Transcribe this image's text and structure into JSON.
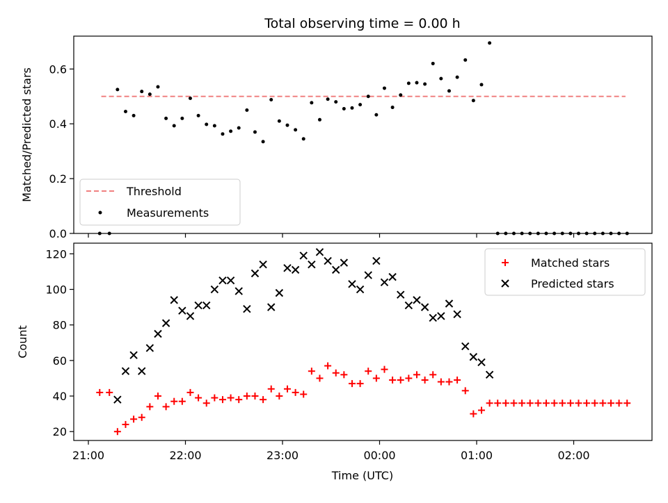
{
  "chart_data": [
    {
      "type": "scatter",
      "panel": "top",
      "title": "Total observing time = 0.00 h",
      "ylabel": "Matched/Predicted stars",
      "xlabel": "",
      "ylim": [
        0,
        0.72
      ],
      "yticks": [
        0.0,
        0.2,
        0.4,
        0.6
      ],
      "ytick_labels": [
        "0.0",
        "0.2",
        "0.4",
        "0.6"
      ],
      "legend": {
        "placement": "lower-left",
        "entries": [
          "Threshold",
          "Measurements"
        ]
      },
      "threshold": {
        "name": "Threshold",
        "value": 0.5,
        "x_start": "21:08",
        "x_end": "02:32",
        "color": "#f08080"
      },
      "measurements": {
        "name": "Measurements",
        "color": "#000000",
        "x": [
          "21:07",
          "21:13",
          "21:18",
          "21:23",
          "21:28",
          "21:33",
          "21:38",
          "21:43",
          "21:48",
          "21:53",
          "21:58",
          "22:03",
          "22:08",
          "22:13",
          "22:18",
          "22:23",
          "22:28",
          "22:33",
          "22:38",
          "22:43",
          "22:48",
          "22:53",
          "22:58",
          "23:03",
          "23:08",
          "23:13",
          "23:18",
          "23:23",
          "23:28",
          "23:33",
          "23:38",
          "23:43",
          "23:48",
          "23:53",
          "23:58",
          "00:03",
          "00:08",
          "00:13",
          "00:18",
          "00:23",
          "00:28",
          "00:33",
          "00:38",
          "00:43",
          "00:48",
          "00:53",
          "00:58",
          "01:03",
          "01:08",
          "01:13",
          "01:18",
          "01:23",
          "01:28",
          "01:33",
          "01:38",
          "01:43",
          "01:48",
          "01:53",
          "01:58",
          "02:03",
          "02:08",
          "02:13",
          "02:18",
          "02:23",
          "02:28",
          "02:33"
        ],
        "y": [
          0.0,
          0.0,
          0.525,
          0.445,
          0.43,
          0.518,
          0.508,
          0.535,
          0.42,
          0.393,
          0.42,
          0.493,
          0.43,
          0.398,
          0.393,
          0.363,
          0.373,
          0.385,
          0.45,
          0.37,
          0.335,
          0.488,
          0.41,
          0.395,
          0.378,
          0.345,
          0.477,
          0.415,
          0.49,
          0.48,
          0.455,
          0.458,
          0.47,
          0.5,
          0.433,
          0.53,
          0.46,
          0.505,
          0.548,
          0.55,
          0.545,
          0.62,
          0.565,
          0.52,
          0.57,
          0.633,
          0.485,
          0.543,
          0.695,
          0.0,
          0.0,
          0.0,
          0.0,
          0.0,
          0.0,
          0.0,
          0.0,
          0.0,
          0.0,
          0.0,
          0.0,
          0.0,
          0.0,
          0.0,
          0.0,
          0.0
        ]
      }
    },
    {
      "type": "scatter",
      "panel": "bottom",
      "xlabel": "Time (UTC)",
      "ylabel": "Count",
      "ylim": [
        15,
        126
      ],
      "yticks": [
        20,
        40,
        60,
        80,
        100,
        120
      ],
      "ytick_labels": [
        "20",
        "40",
        "60",
        "80",
        "100",
        "120"
      ],
      "xticks": [
        "21:00",
        "22:00",
        "23:00",
        "00:00",
        "01:00",
        "02:00"
      ],
      "legend": {
        "placement": "upper-right",
        "entries": [
          "Matched stars",
          "Predicted stars"
        ]
      },
      "series": [
        {
          "name": "Matched stars",
          "marker": "plus",
          "color": "#ff0000",
          "x": [
            "21:07",
            "21:13",
            "21:18",
            "21:23",
            "21:28",
            "21:33",
            "21:38",
            "21:43",
            "21:48",
            "21:53",
            "21:58",
            "22:03",
            "22:08",
            "22:13",
            "22:18",
            "22:23",
            "22:28",
            "22:33",
            "22:38",
            "22:43",
            "22:48",
            "22:53",
            "22:58",
            "23:03",
            "23:08",
            "23:13",
            "23:18",
            "23:23",
            "23:28",
            "23:33",
            "23:38",
            "23:43",
            "23:48",
            "23:53",
            "23:58",
            "00:03",
            "00:08",
            "00:13",
            "00:18",
            "00:23",
            "00:28",
            "00:33",
            "00:38",
            "00:43",
            "00:48",
            "00:53",
            "00:58",
            "01:03",
            "01:08",
            "01:13",
            "01:18",
            "01:23",
            "01:28",
            "01:33",
            "01:38",
            "01:43",
            "01:48",
            "01:53",
            "01:58",
            "02:03",
            "02:08",
            "02:13",
            "02:18",
            "02:23",
            "02:28",
            "02:33"
          ],
          "y": [
            42,
            42,
            20,
            24,
            27,
            28,
            34,
            40,
            34,
            37,
            37,
            42,
            39,
            36,
            39,
            38,
            39,
            38,
            40,
            40,
            38,
            44,
            40,
            44,
            42,
            41,
            54,
            50,
            57,
            53,
            52,
            47,
            47,
            54,
            50,
            55,
            49,
            49,
            50,
            52,
            49,
            52,
            48,
            48,
            49,
            43,
            30,
            32,
            36,
            36,
            36,
            36,
            36,
            36,
            36,
            36,
            36,
            36,
            36,
            36,
            36,
            36,
            36,
            36,
            36,
            36
          ]
        },
        {
          "name": "Predicted stars",
          "marker": "x",
          "color": "#000000",
          "x": [
            "21:18",
            "21:23",
            "21:28",
            "21:33",
            "21:38",
            "21:43",
            "21:48",
            "21:53",
            "21:58",
            "22:03",
            "22:08",
            "22:13",
            "22:18",
            "22:23",
            "22:28",
            "22:33",
            "22:38",
            "22:43",
            "22:48",
            "22:53",
            "22:58",
            "23:03",
            "23:08",
            "23:13",
            "23:18",
            "23:23",
            "23:28",
            "23:33",
            "23:38",
            "23:43",
            "23:48",
            "23:53",
            "23:58",
            "00:03",
            "00:08",
            "00:13",
            "00:18",
            "00:23",
            "00:28",
            "00:33",
            "00:38",
            "00:43",
            "00:48",
            "00:53",
            "00:58",
            "01:03",
            "01:08"
          ],
          "y": [
            38,
            54,
            63,
            54,
            67,
            75,
            81,
            94,
            88,
            85,
            91,
            91,
            100,
            105,
            105,
            99,
            89,
            109,
            114,
            90,
            98,
            112,
            111,
            119,
            114,
            121,
            116,
            111,
            115,
            103,
            100,
            108,
            116,
            104,
            107,
            97,
            91,
            94,
            90,
            84,
            85,
            92,
            86,
            68,
            62,
            59,
            52
          ]
        }
      ]
    }
  ]
}
